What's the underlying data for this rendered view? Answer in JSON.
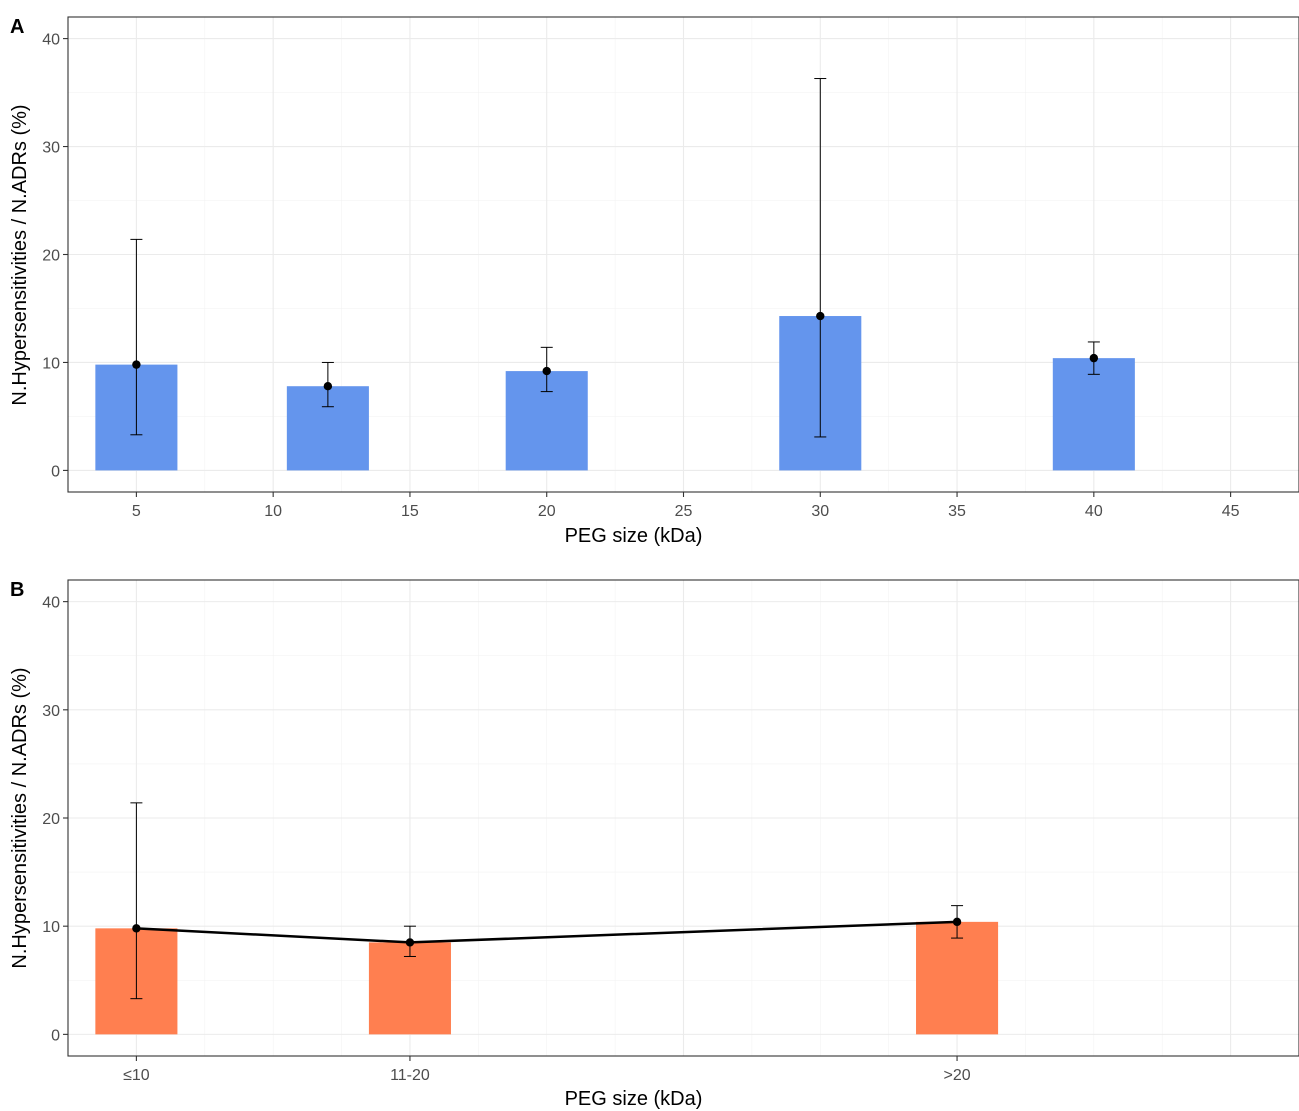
{
  "chart_data": [
    {
      "type": "bar",
      "panel_label": "A",
      "xlabel": "PEG size (kDa)",
      "ylabel": "N.Hypersensitivities / N.ADRs (%)",
      "x_scale": "continuous",
      "xlim": [
        2.5,
        47.5
      ],
      "x_ticks": [
        5,
        10,
        15,
        20,
        25,
        30,
        35,
        40,
        45
      ],
      "ylim": [
        -2,
        42
      ],
      "y_ticks": [
        0,
        10,
        20,
        30,
        40
      ],
      "grid": true,
      "bar_color": "#6495ED",
      "x": [
        5,
        12,
        20,
        30,
        40
      ],
      "values": [
        9.8,
        7.8,
        9.2,
        14.3,
        10.4
      ],
      "error_low": [
        3.3,
        5.9,
        7.3,
        3.1,
        8.9
      ],
      "error_high": [
        21.4,
        10.0,
        11.4,
        36.3,
        11.9
      ]
    },
    {
      "type": "bar",
      "panel_label": "B",
      "xlabel": "PEG size (kDa)",
      "ylabel": "N.Hypersensitivities / N.ADRs (%)",
      "x_scale": "categorical",
      "xlim": [
        2.5,
        47.5
      ],
      "ylim": [
        -2,
        42
      ],
      "y_ticks": [
        0,
        10,
        20,
        30,
        40
      ],
      "grid": true,
      "bar_color": "#FF7F50",
      "categories": [
        "≤10",
        "11-20",
        ">20"
      ],
      "category_positions": [
        5,
        15,
        35
      ],
      "values": [
        9.8,
        8.5,
        10.4
      ],
      "error_low": [
        3.3,
        7.2,
        8.9
      ],
      "error_high": [
        21.4,
        10.0,
        11.9
      ],
      "trend_line": true
    }
  ]
}
